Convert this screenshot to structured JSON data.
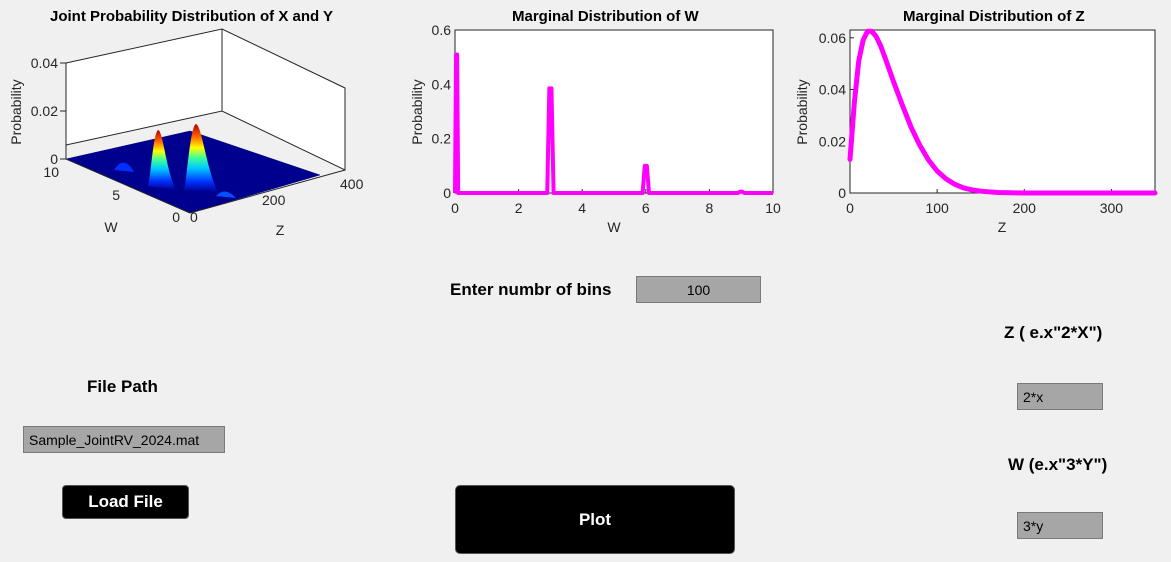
{
  "joint_plot": {
    "title": "Joint Probability Distribution of X and Y",
    "xlabel": "Z",
    "ylabel": "W",
    "zlabel": "Probability"
  },
  "marginal_w": {
    "title": "Marginal Distribution of W",
    "xlabel": "W",
    "ylabel": "Probability"
  },
  "marginal_z": {
    "title": "Marginal Distribution of Z",
    "xlabel": "Z",
    "ylabel": "Probability"
  },
  "bins": {
    "label": "Enter numbr of bins",
    "value": "100"
  },
  "file": {
    "label": "File Path",
    "value": "Sample_JointRV_2024.mat",
    "load_label": "Load File"
  },
  "z_expr": {
    "label": "Z  ( e.x\"2*X\")",
    "value": "2*x"
  },
  "w_expr": {
    "label": "W (e.x\"3*Y\")",
    "value": "3*y"
  },
  "plot_button": {
    "label": "Plot"
  },
  "colors": {
    "curve": "#ff00ff",
    "surface_base": "#00008f"
  },
  "chart_data": [
    {
      "type": "surface",
      "title": "Joint Probability Distribution of X and Y",
      "xlabel": "Z",
      "ylabel": "W",
      "zlabel": "Probability",
      "xlim": [
        0,
        400
      ],
      "ylim": [
        0,
        10
      ],
      "zlim": [
        0,
        0.04
      ],
      "x_ticks": [
        "0",
        "200",
        "400"
      ],
      "y_ticks": [
        "0",
        "5",
        "10"
      ],
      "z_ticks": [
        "0",
        "0.02",
        "0.04"
      ],
      "peaks": [
        {
          "w": 0,
          "z": 40,
          "height": 0.002
        },
        {
          "w": 3,
          "z": 40,
          "height": 0.021
        },
        {
          "w": 6,
          "z": 40,
          "height": 0.027
        },
        {
          "w": 9,
          "z": 40,
          "height": 0.003
        }
      ]
    },
    {
      "type": "line",
      "title": "Marginal Distribution of W",
      "xlabel": "W",
      "ylabel": "Probability",
      "xlim": [
        0,
        10
      ],
      "ylim": [
        0,
        0.6
      ],
      "x_ticks": [
        0,
        2,
        4,
        6,
        8,
        10
      ],
      "y_ticks": [
        0,
        0.2,
        0.4,
        0.6
      ],
      "spikes": [
        {
          "x": 0.05,
          "height": 0.51,
          "width": 0.05
        },
        {
          "x": 3.0,
          "height": 0.385,
          "width": 0.1
        },
        {
          "x": 6.0,
          "height": 0.1,
          "width": 0.1
        },
        {
          "x": 9.0,
          "height": 0.005,
          "width": 0.1
        }
      ],
      "grid": false
    },
    {
      "type": "line",
      "title": "Marginal Distribution of Z",
      "xlabel": "Z",
      "ylabel": "Probability",
      "xlim": [
        0,
        350
      ],
      "ylim": [
        0,
        0.063
      ],
      "x_ticks": [
        0,
        100,
        200,
        300
      ],
      "y_ticks": [
        0,
        0.02,
        0.04,
        0.06
      ],
      "x": [
        0,
        5,
        10,
        15,
        20,
        25,
        30,
        35,
        40,
        50,
        60,
        70,
        80,
        90,
        100,
        110,
        120,
        130,
        140,
        150,
        170,
        200,
        250,
        300,
        350
      ],
      "y": [
        0.013,
        0.035,
        0.051,
        0.059,
        0.0625,
        0.0625,
        0.0605,
        0.057,
        0.0525,
        0.043,
        0.034,
        0.0255,
        0.0185,
        0.0128,
        0.0085,
        0.0055,
        0.0034,
        0.002,
        0.0012,
        0.0007,
        0.0002,
        0.0,
        0.0,
        0.0,
        0.0
      ],
      "grid": false
    }
  ]
}
